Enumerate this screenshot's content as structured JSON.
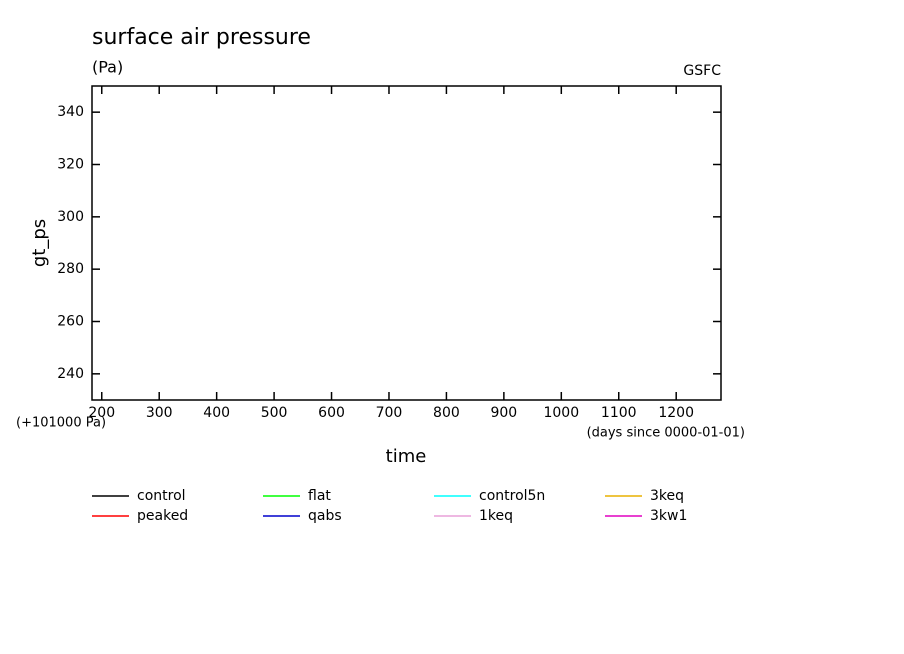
{
  "chart_data": {
    "type": "line",
    "title": "surface air pressure",
    "subtitle": "(Pa)",
    "source": "GSFC",
    "x_label": "time",
    "x_unit": "(days since 0000-01-01)",
    "y_label": "gt_ps",
    "y_offset": "(+101000 Pa)",
    "x": [],
    "series": [
      {
        "name": "control",
        "color": "#000000",
        "values": []
      },
      {
        "name": "peaked",
        "color": "#ff0000",
        "values": []
      },
      {
        "name": "flat",
        "color": "#00ff00",
        "values": []
      },
      {
        "name": "qabs",
        "color": "#0000cc",
        "values": []
      },
      {
        "name": "control5n",
        "color": "#00ffff",
        "values": []
      },
      {
        "name": "1keq",
        "color": "#e8a0d8",
        "values": []
      },
      {
        "name": "3keq",
        "color": "#e8b000",
        "values": []
      },
      {
        "name": "3kw1",
        "color": "#e000c0",
        "values": []
      }
    ],
    "xlim": [
      183,
      1278
    ],
    "xticks": [
      200,
      300,
      400,
      500,
      600,
      700,
      800,
      900,
      1000,
      1100,
      1200
    ],
    "ylim": [
      230,
      350
    ],
    "yticks": [
      240,
      260,
      280,
      300,
      320,
      340
    ],
    "grid": false
  }
}
